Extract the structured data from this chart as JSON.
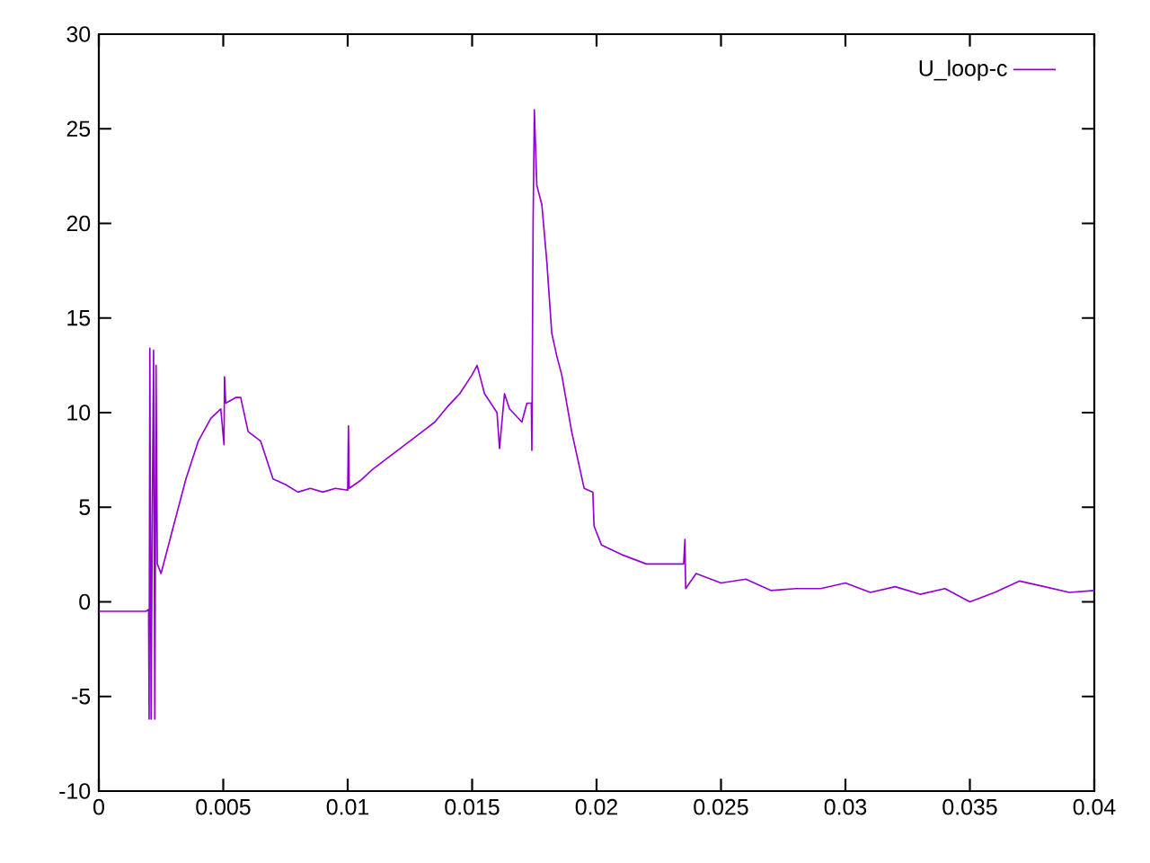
{
  "chart_data": {
    "type": "line",
    "x": [
      0,
      0.0019,
      0.002,
      0.00202,
      0.00205,
      0.0021,
      0.00215,
      0.0022,
      0.00225,
      0.0023,
      0.00235,
      0.0025,
      0.003,
      0.0035,
      0.004,
      0.0045,
      0.0049,
      0.00503,
      0.00505,
      0.0051,
      0.0055,
      0.0057,
      0.006,
      0.0065,
      0.007,
      0.0075,
      0.008,
      0.0085,
      0.009,
      0.0095,
      0.01,
      0.01003,
      0.01006,
      0.0105,
      0.011,
      0.0115,
      0.012,
      0.0125,
      0.013,
      0.0135,
      0.014,
      0.0145,
      0.015,
      0.0152,
      0.0155,
      0.016,
      0.0161,
      0.0163,
      0.0165,
      0.017,
      0.0172,
      0.01738,
      0.0174,
      0.01745,
      0.0175,
      0.0176,
      0.0178,
      0.018,
      0.0182,
      0.0184,
      0.0186,
      0.019,
      0.0195,
      0.01985,
      0.0199,
      0.0202,
      0.021,
      0.022,
      0.023,
      0.0235,
      0.02355,
      0.02358,
      0.024,
      0.025,
      0.026,
      0.027,
      0.028,
      0.029,
      0.03,
      0.031,
      0.032,
      0.033,
      0.034,
      0.035,
      0.036,
      0.037,
      0.038,
      0.039,
      0.04
    ],
    "series": [
      {
        "name": "U_loop-c",
        "color": "#9400d3",
        "values": [
          -0.5,
          -0.5,
          -0.4,
          -6.2,
          13.4,
          -6.2,
          5,
          13.3,
          -6.2,
          12.5,
          2,
          1.5,
          4,
          6.5,
          8.5,
          9.7,
          10.2,
          8.3,
          11.9,
          10.5,
          10.8,
          10.8,
          9,
          8.5,
          6.5,
          6.2,
          5.8,
          6,
          5.8,
          6,
          5.9,
          9.3,
          6,
          6.4,
          7,
          7.5,
          8,
          8.5,
          9,
          9.5,
          10.3,
          11,
          12,
          12.5,
          11,
          10,
          8.1,
          11,
          10.2,
          9.5,
          10.5,
          10.5,
          8,
          20,
          26,
          22,
          21,
          18,
          14.2,
          13,
          12,
          9,
          6,
          5.8,
          4,
          3,
          2.5,
          2,
          2,
          2,
          3.3,
          0.7,
          1.5,
          1,
          1.2,
          0.6,
          0.7,
          0.7,
          1,
          0.5,
          0.8,
          0.4,
          0.7,
          0,
          0.5,
          1.1,
          0.8,
          0.5,
          0.6
        ]
      }
    ],
    "xlim": [
      0,
      0.04
    ],
    "ylim": [
      -10,
      30
    ],
    "xticks": [
      0,
      0.005,
      0.01,
      0.015,
      0.02,
      0.025,
      0.03,
      0.035,
      0.04
    ],
    "yticks": [
      -10,
      -5,
      0,
      5,
      10,
      15,
      20,
      25,
      30
    ],
    "legend": "top right"
  }
}
